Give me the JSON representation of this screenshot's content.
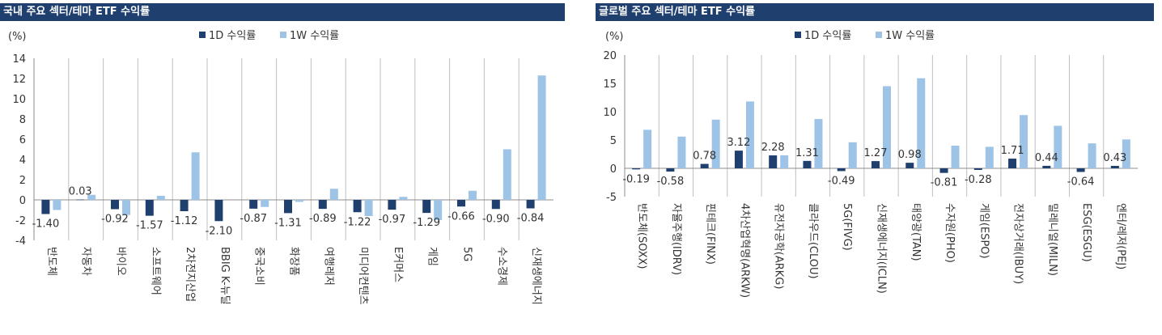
{
  "colors": {
    "header_bg": "#1f3f6e",
    "series_1d": "#1f3f6e",
    "series_1w": "#9dc3e6",
    "grid": "#bfbfbf"
  },
  "panels": [
    {
      "header": "국내 주요 섹터/테마 ETF 수익률",
      "chart_data": {
        "type": "bar",
        "unit_label": "(%)",
        "ylim": [
          -4,
          14
        ],
        "yticks": [
          "-4",
          "-2",
          "0",
          "2",
          "4",
          "6",
          "8",
          "10",
          "12",
          "14"
        ],
        "legend_position": "top-center",
        "categories": [
          "반도체",
          "자동차",
          "바이오",
          "소프트웨어",
          "2차전지산업",
          "BBIG K-뉴딜",
          "중국소비",
          "화장품",
          "여행레저",
          "미디어컨텐츠",
          "E커머스",
          "게임",
          "5G",
          "수소경제",
          "신재생에너지"
        ],
        "series": [
          {
            "name": "1D 수익률",
            "values": [
              -1.4,
              0.03,
              -0.92,
              -1.57,
              -1.12,
              -2.1,
              -0.87,
              -1.31,
              -0.89,
              -1.22,
              -0.97,
              -1.29,
              -0.66,
              -0.9,
              -0.84
            ]
          },
          {
            "name": "1W 수익률",
            "values": [
              -1.0,
              0.5,
              -1.5,
              0.4,
              4.7,
              0.0,
              -0.7,
              -0.2,
              1.1,
              -1.6,
              0.3,
              -2.0,
              0.9,
              5.0,
              12.3
            ]
          }
        ],
        "data_labels": [
          "-1.40",
          "0.03",
          "-0.92",
          "-1.57",
          "-1.12",
          "-2.10",
          "-0.87",
          "-1.31",
          "-0.89",
          "-1.22",
          "-0.97",
          "-1.29",
          "-0.66",
          "-0.90",
          "-0.84"
        ]
      }
    },
    {
      "header": "글로벌 주요 섹터/테마 ETF 수익률",
      "chart_data": {
        "type": "bar",
        "unit_label": "(%)",
        "ylim": [
          -5,
          20
        ],
        "yticks": [
          "-5",
          "0",
          "5",
          "10",
          "15",
          "20"
        ],
        "legend_position": "top-center",
        "categories": [
          "반도체(SOXX)",
          "자율주행(IDRV)",
          "핀테크(FINX)",
          "4차산업혁명(ARKW)",
          "유전자공학(ARKG)",
          "클라우드(CLOU)",
          "5G(FIVG)",
          "신재생에너지(ICLN)",
          "태양광(TAN)",
          "수자원(PHO)",
          "게임(ESPO)",
          "전자상거래(IBUY)",
          "밀레니얼(MILN)",
          "ESG(ESGU)",
          "엔터/레저(PEJ)"
        ],
        "series": [
          {
            "name": "1D 수익률",
            "values": [
              -0.19,
              -0.58,
              0.78,
              3.12,
              2.28,
              1.31,
              -0.49,
              1.27,
              0.98,
              -0.81,
              -0.28,
              1.71,
              0.44,
              -0.64,
              0.43
            ]
          },
          {
            "name": "1W 수익률",
            "values": [
              6.8,
              5.6,
              8.6,
              11.8,
              2.3,
              8.7,
              4.6,
              14.5,
              15.9,
              4.0,
              3.8,
              9.4,
              7.5,
              4.4,
              5.1
            ]
          }
        ],
        "data_labels": [
          "-0.19",
          "-0.58",
          "0.78",
          "3.12",
          "2.28",
          "1.31",
          "-0.49",
          "1.27",
          "0.98",
          "-0.81",
          "-0.28",
          "1.71",
          "0.44",
          "-0.64",
          "0.43"
        ]
      }
    }
  ]
}
